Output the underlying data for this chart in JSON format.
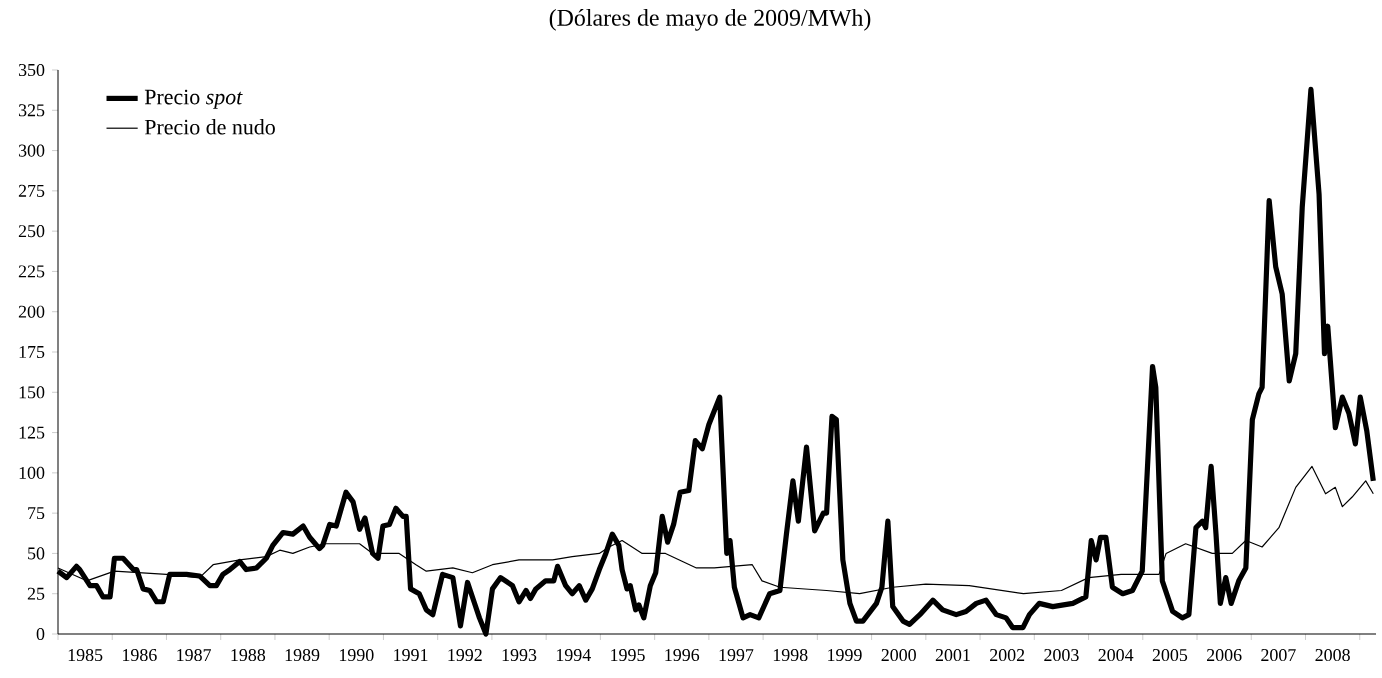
{
  "chart_data": {
    "type": "line",
    "title": "(Dólares de mayo de 2009/MWh)",
    "xlim": [
      1985,
      2009.3
    ],
    "xticks": [
      {
        "value": 1985,
        "label": null
      },
      {
        "value": 1985.5,
        "label": "1985"
      },
      {
        "value": 1986,
        "label": null
      },
      {
        "value": 1986.5,
        "label": "1986"
      },
      {
        "value": 1987,
        "label": null
      },
      {
        "value": 1987.5,
        "label": "1987"
      },
      {
        "value": 1988,
        "label": null
      },
      {
        "value": 1988.5,
        "label": "1988"
      },
      {
        "value": 1989,
        "label": null
      },
      {
        "value": 1989.5,
        "label": "1989"
      },
      {
        "value": 1990,
        "label": null
      },
      {
        "value": 1990.5,
        "label": "1990"
      },
      {
        "value": 1991,
        "label": null
      },
      {
        "value": 1991.5,
        "label": "1991"
      },
      {
        "value": 1992,
        "label": null
      },
      {
        "value": 1992.5,
        "label": "1992"
      },
      {
        "value": 1993,
        "label": null
      },
      {
        "value": 1993.5,
        "label": "1993"
      },
      {
        "value": 1994,
        "label": null
      },
      {
        "value": 1994.5,
        "label": "1994"
      },
      {
        "value": 1995,
        "label": null
      },
      {
        "value": 1995.5,
        "label": "1995"
      },
      {
        "value": 1996,
        "label": null
      },
      {
        "value": 1996.5,
        "label": "1996"
      },
      {
        "value": 1997,
        "label": null
      },
      {
        "value": 1997.5,
        "label": "1997"
      },
      {
        "value": 1998,
        "label": null
      },
      {
        "value": 1998.5,
        "label": "1998"
      },
      {
        "value": 1999,
        "label": null
      },
      {
        "value": 1999.5,
        "label": "1999"
      },
      {
        "value": 2000,
        "label": null
      },
      {
        "value": 2000.5,
        "label": "2000"
      },
      {
        "value": 2001,
        "label": null
      },
      {
        "value": 2001.5,
        "label": "2001"
      },
      {
        "value": 2002,
        "label": null
      },
      {
        "value": 2002.5,
        "label": "2002"
      },
      {
        "value": 2003,
        "label": null
      },
      {
        "value": 2003.5,
        "label": "2003"
      },
      {
        "value": 2004,
        "label": null
      },
      {
        "value": 2004.5,
        "label": "2004"
      },
      {
        "value": 2005,
        "label": null
      },
      {
        "value": 2005.5,
        "label": "2005"
      },
      {
        "value": 2006,
        "label": null
      },
      {
        "value": 2006.5,
        "label": "2006"
      },
      {
        "value": 2007,
        "label": null
      },
      {
        "value": 2007.5,
        "label": "2007"
      },
      {
        "value": 2008,
        "label": null
      },
      {
        "value": 2008.5,
        "label": "2008"
      },
      {
        "value": 2009,
        "label": null
      }
    ],
    "ylim": [
      0,
      350
    ],
    "yticks": [
      0,
      25,
      50,
      75,
      100,
      125,
      150,
      175,
      200,
      225,
      250,
      275,
      300,
      325,
      350
    ],
    "legend": "top left",
    "grid": false,
    "series": [
      {
        "name": "Precio *spot*",
        "color": "#000000",
        "x": [
          1985.0,
          1985.16,
          1985.34,
          1985.4,
          1985.59,
          1985.71,
          1985.83,
          1985.96,
          1986.04,
          1986.2,
          1986.39,
          1986.45,
          1986.57,
          1986.69,
          1986.82,
          1986.94,
          1987.06,
          1987.37,
          1987.61,
          1987.8,
          1987.92,
          1988.04,
          1988.17,
          1988.35,
          1988.47,
          1988.66,
          1988.84,
          1988.96,
          1989.15,
          1989.33,
          1989.52,
          1989.64,
          1989.82,
          1989.88,
          1990.01,
          1990.13,
          1990.31,
          1990.44,
          1990.56,
          1990.66,
          1990.8,
          1990.9,
          1990.99,
          1991.11,
          1991.23,
          1991.36,
          1991.42,
          1991.5,
          1991.66,
          1991.79,
          1991.91,
          1992.09,
          1992.28,
          1992.42,
          1992.55,
          1992.67,
          1992.77,
          1992.89,
          1993.01,
          1993.16,
          1993.38,
          1993.5,
          1993.63,
          1993.71,
          1993.81,
          1993.99,
          1994.14,
          1994.21,
          1994.36,
          1994.48,
          1994.61,
          1994.73,
          1994.85,
          1994.98,
          1995.1,
          1995.22,
          1995.34,
          1995.4,
          1995.49,
          1995.55,
          1995.65,
          1995.71,
          1995.8,
          1995.92,
          1996.02,
          1996.14,
          1996.24,
          1996.35,
          1996.47,
          1996.63,
          1996.75,
          1996.88,
          1997.0,
          1997.2,
          1997.33,
          1997.39,
          1997.47,
          1997.63,
          1997.76,
          1997.92,
          1998.12,
          1998.31,
          1998.43,
          1998.55,
          1998.65,
          1998.8,
          1998.95,
          1999.11,
          1999.17,
          1999.27,
          1999.35,
          1999.47,
          1999.6,
          1999.72,
          1999.84,
          2000.09,
          2000.19,
          2000.3,
          2000.39,
          2000.58,
          2000.7,
          2000.89,
          2001.13,
          2001.31,
          2001.56,
          2001.74,
          2001.93,
          2002.11,
          2002.3,
          2002.48,
          2002.6,
          2002.79,
          2002.91,
          2003.09,
          2003.34,
          2003.71,
          2003.95,
          2004.05,
          2004.14,
          2004.22,
          2004.32,
          2004.44,
          2004.63,
          2004.81,
          2004.99,
          2005.18,
          2005.24,
          2005.36,
          2005.55,
          2005.73,
          2005.85,
          2005.98,
          2006.1,
          2006.16,
          2006.26,
          2006.35,
          2006.43,
          2006.53,
          2006.63,
          2006.77,
          2006.9,
          2007.02,
          2007.14,
          2007.2,
          2007.33,
          2007.45,
          2007.57,
          2007.7,
          2007.82,
          2007.94,
          2008.1,
          2008.25,
          2008.35,
          2008.41,
          2008.55,
          2008.68,
          2008.8,
          2008.92,
          2009.01,
          2009.13,
          2009.25
        ],
        "values": [
          39,
          35,
          42,
          40,
          30,
          30,
          23,
          23,
          47,
          47,
          40,
          40,
          28,
          27,
          20,
          20,
          37,
          37,
          36,
          30,
          30,
          37,
          40,
          45,
          40,
          41,
          47,
          55,
          63,
          62,
          67,
          60,
          53,
          55,
          68,
          67,
          88,
          82,
          65,
          72,
          50,
          47,
          67,
          68,
          78,
          73,
          73,
          28,
          25,
          15,
          12,
          37,
          35,
          5,
          32,
          20,
          10,
          0,
          28,
          35,
          30,
          20,
          27,
          22,
          28,
          33,
          33,
          42,
          30,
          25,
          30,
          21,
          28,
          40,
          50,
          62,
          55,
          40,
          28,
          30,
          15,
          18,
          10,
          30,
          38,
          73,
          57,
          68,
          88,
          89,
          120,
          115,
          130,
          147,
          50,
          58,
          29,
          10,
          12,
          10,
          25,
          27,
          62,
          95,
          70,
          116,
          64,
          75,
          75,
          135,
          133,
          46,
          19,
          8,
          8,
          19,
          29,
          70,
          17,
          8,
          6,
          12,
          21,
          15,
          12,
          14,
          19,
          21,
          12,
          10,
          4,
          4,
          12,
          19,
          17,
          19,
          23,
          58,
          46,
          60,
          60,
          29,
          25,
          27,
          39,
          166,
          153,
          33,
          14,
          10,
          12,
          66,
          70,
          66,
          104,
          62,
          19,
          35,
          19,
          33,
          41,
          133,
          149,
          153,
          269,
          228,
          211,
          157,
          174,
          265,
          338,
          273,
          174,
          191,
          128,
          147,
          137,
          118,
          147,
          126,
          95
        ]
      },
      {
        "name": "Precio de nudo",
        "color": "#000000",
        "x": [
          1985.0,
          1985.53,
          1986.04,
          1987.0,
          1987.61,
          1987.86,
          1988.35,
          1988.84,
          1989.09,
          1989.33,
          1989.64,
          1989.94,
          1990.56,
          1990.8,
          1991.29,
          1991.6,
          1991.79,
          1992.28,
          1992.64,
          1993.01,
          1993.5,
          1994.12,
          1994.48,
          1994.98,
          1995.16,
          1995.4,
          1995.77,
          1996.2,
          1996.77,
          1997.1,
          1997.8,
          1997.98,
          1998.31,
          1999.17,
          1999.78,
          2000.39,
          2001.0,
          2001.8,
          2002.8,
          2003.5,
          2004.0,
          2004.6,
          2005.3,
          2005.43,
          2005.79,
          2006.28,
          2006.65,
          2006.9,
          2007.2,
          2007.51,
          2007.82,
          2008.12,
          2008.37,
          2008.55,
          2008.68,
          2008.86,
          2009.11,
          2009.25
        ],
        "values": [
          41,
          33,
          39,
          37,
          35,
          43,
          46,
          48,
          52,
          50,
          54,
          56,
          56,
          50,
          50,
          43,
          39,
          41,
          38,
          43,
          46,
          46,
          48,
          50,
          54,
          58,
          50,
          50,
          41,
          41,
          43,
          33,
          29,
          27,
          25,
          29,
          31,
          30,
          25,
          27,
          35,
          37,
          37,
          50,
          56,
          50,
          50,
          58,
          54,
          66,
          91,
          104,
          87,
          91,
          79,
          85,
          95,
          87
        ]
      }
    ]
  }
}
